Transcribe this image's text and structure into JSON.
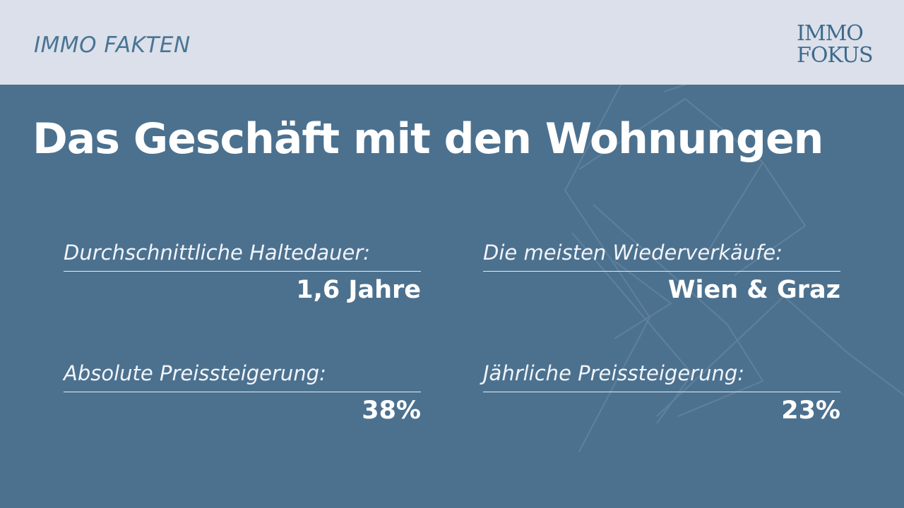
{
  "header": {
    "kicker": "IMMO FAKTEN",
    "logo_line1": "IMMO",
    "logo_line2": "FOKUS"
  },
  "main": {
    "title": "Das Geschäft mit den Wohnungen",
    "facts": [
      {
        "label": "Durchschnittliche Haltedauer:",
        "value": "1,6 Jahre"
      },
      {
        "label": "Die meisten Wiederverkäufe:",
        "value": "Wien & Graz"
      },
      {
        "label": "Absolute Preissteigerung:",
        "value": "38%"
      },
      {
        "label": "Jährliche Preissteigerung:",
        "value": "23%"
      }
    ]
  },
  "colors": {
    "topbar_bg": "#dbe0ea",
    "panel_bg": "#4c718f",
    "accent": "#4a7595",
    "text_light": "#ffffff"
  }
}
